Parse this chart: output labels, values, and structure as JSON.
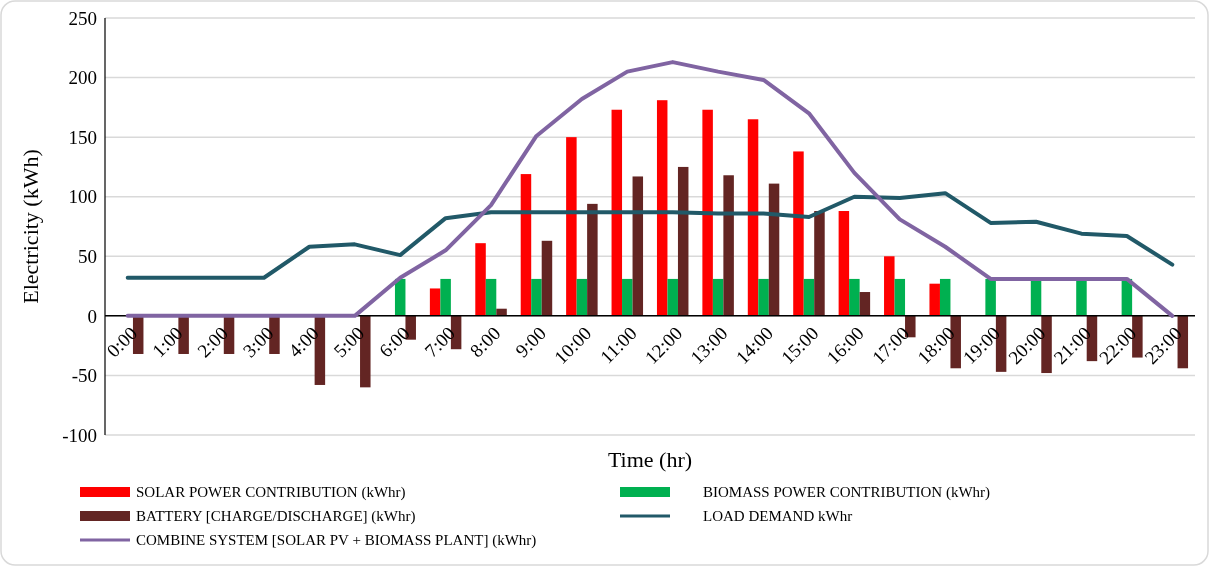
{
  "chart_data": {
    "type": "bar",
    "xlabel": "Time (hr)",
    "ylabel": "Electricity (kWh)",
    "categories": [
      "0:00",
      "1:00",
      "2:00",
      "3:00",
      "4:00",
      "5:00",
      "6:00",
      "7:00",
      "8:00",
      "9:00",
      "10:00",
      "11:00",
      "12:00",
      "13:00",
      "14:00",
      "15:00",
      "16:00",
      "17:00",
      "18:00",
      "19:00",
      "20:00",
      "21:00",
      "22:00",
      "23:00"
    ],
    "series": [
      {
        "name": "SOLAR POWER CONTRIBUTION (kWhr)",
        "type": "bar",
        "color": "#ff0000",
        "values": [
          0,
          0,
          0,
          0,
          0,
          0,
          0,
          23,
          61,
          119,
          150,
          173,
          181,
          173,
          165,
          138,
          88,
          50,
          27,
          0,
          0,
          0,
          0,
          0
        ]
      },
      {
        "name": "BIOMASS POWER CONTRIBUTION (kWhr)",
        "type": "bar",
        "color": "#00b050",
        "values": [
          0,
          0,
          0,
          0,
          0,
          0,
          31,
          31,
          31,
          31,
          31,
          31,
          31,
          31,
          31,
          31,
          31,
          31,
          31,
          31,
          31,
          31,
          31,
          0
        ]
      },
      {
        "name": "BATTERY [CHARGE/DISCHARGE] (kWhr)",
        "type": "bar",
        "color": "#632523",
        "values": [
          -32,
          -32,
          -32,
          -32,
          -58,
          -60,
          -20,
          -28,
          6,
          63,
          94,
          117,
          125,
          118,
          111,
          88,
          20,
          -18,
          -44,
          -47,
          -48,
          -38,
          -35,
          -44
        ]
      },
      {
        "name": "LOAD DEMAND kWhr",
        "type": "line",
        "color": "#215968",
        "values": [
          32,
          32,
          32,
          32,
          58,
          60,
          51,
          82,
          87,
          87,
          87,
          87,
          87,
          86,
          86,
          83,
          100,
          99,
          103,
          78,
          79,
          69,
          67,
          43
        ]
      },
      {
        "name": "COMBINE SYSTEM [SOLAR PV + BIOMASS PLANT] (kWhr)",
        "type": "line",
        "color": "#8064a2",
        "values": [
          0,
          0,
          0,
          0,
          0,
          0,
          32,
          55,
          93,
          151,
          182,
          205,
          213,
          205,
          198,
          170,
          120,
          81,
          58,
          31,
          31,
          31,
          31,
          0
        ]
      }
    ],
    "ylim": [
      -100,
      250
    ],
    "yticks": [
      -100,
      -50,
      0,
      50,
      100,
      150,
      200,
      250
    ],
    "grid": "y",
    "legend": "bottom",
    "line_style": "solid",
    "marker": "none"
  }
}
